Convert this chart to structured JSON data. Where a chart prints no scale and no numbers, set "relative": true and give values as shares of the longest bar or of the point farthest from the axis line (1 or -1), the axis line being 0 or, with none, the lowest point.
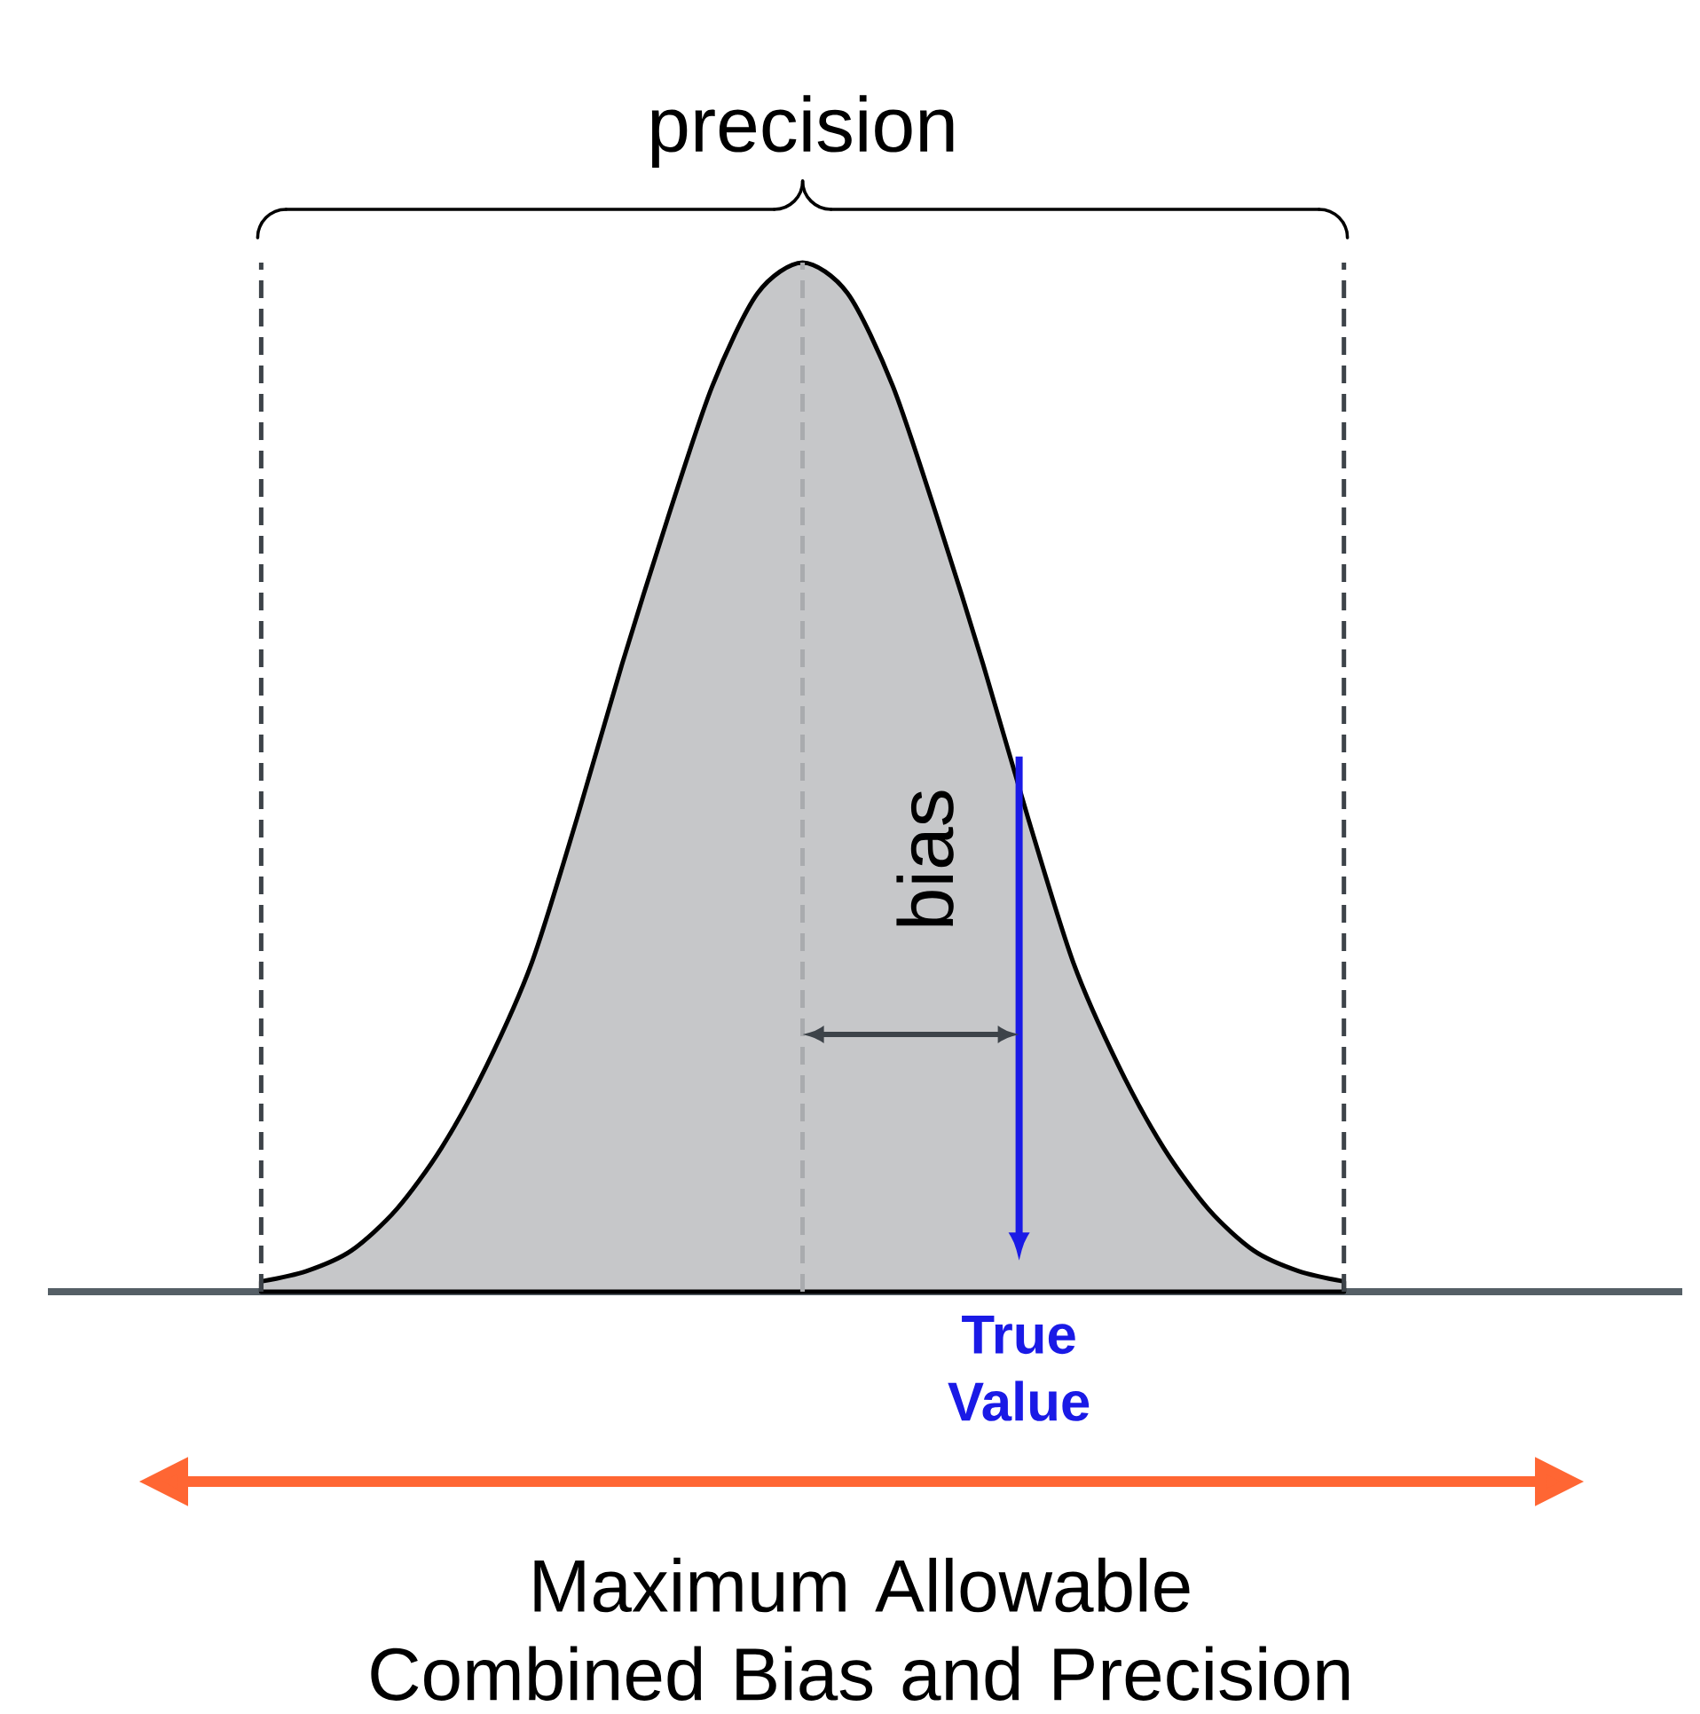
{
  "chart_data": {
    "type": "area",
    "relative": true,
    "categories": [
      null,
      null,
      null,
      null,
      null,
      null,
      null,
      null,
      null,
      null,
      null,
      null,
      null,
      null,
      null,
      null,
      null,
      null,
      null,
      null,
      null,
      null,
      null,
      null,
      null
    ],
    "values": [
      0.01,
      0.02,
      0.04,
      0.08,
      0.14,
      0.22,
      0.32,
      0.46,
      0.61,
      0.75,
      0.88,
      0.97,
      1,
      0.97,
      0.88,
      0.75,
      0.61,
      0.46,
      0.32,
      0.22,
      0.14,
      0.08,
      0.04,
      0.02,
      0.01
    ],
    "color": "#c6c7c9",
    "annotations": [
      "precision",
      "bias",
      "Maximum Allowable Combined Bias and Precision",
      "True Value"
    ]
  }
}
